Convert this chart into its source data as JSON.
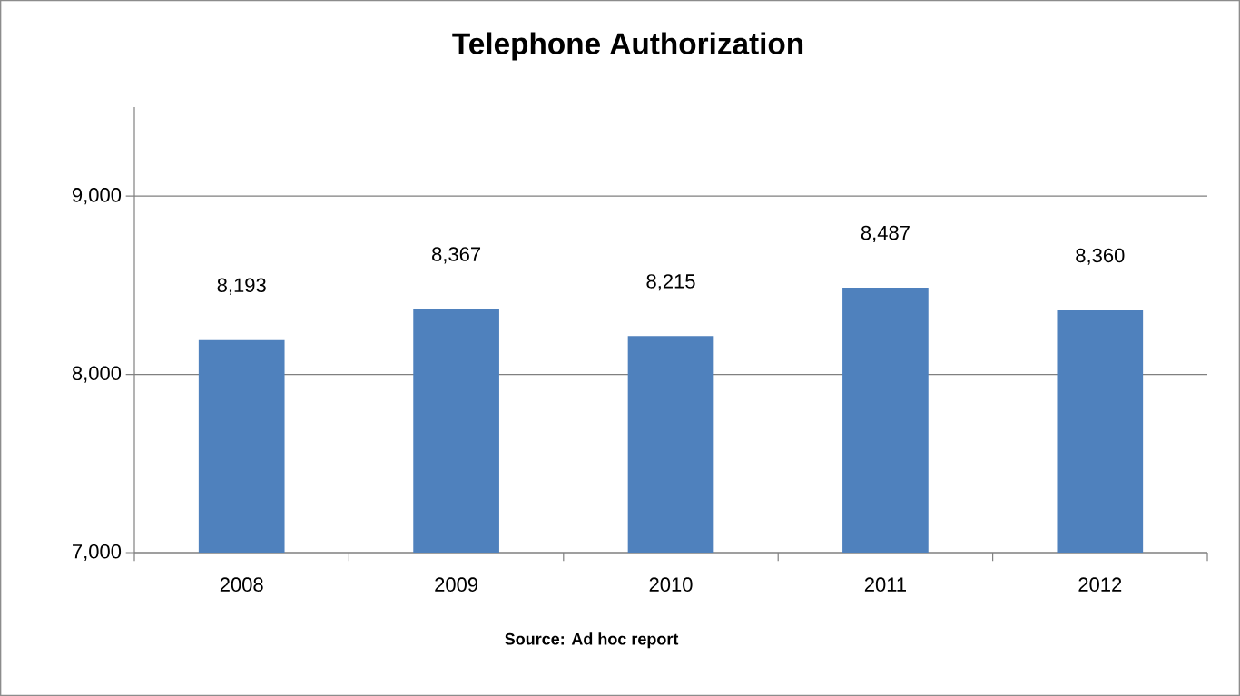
{
  "chart_data": {
    "type": "bar",
    "title": "Telephone Authorization",
    "categories": [
      "2008",
      "2009",
      "2010",
      "2011",
      "2012"
    ],
    "values": [
      8193,
      8367,
      8215,
      8487,
      8360
    ],
    "value_labels": [
      "8,193",
      "8,367",
      "8,215",
      "8,487",
      "8,360"
    ],
    "color": "#4f81bd",
    "ylim": [
      7000,
      9500
    ],
    "yticks": [
      {
        "value": 7000,
        "label": "7,000"
      },
      {
        "value": 8000,
        "label": "8,000"
      },
      {
        "value": 9000,
        "label": "9,000"
      }
    ],
    "grid": "y",
    "annotations": [
      "Source: Ad hoc report"
    ]
  }
}
